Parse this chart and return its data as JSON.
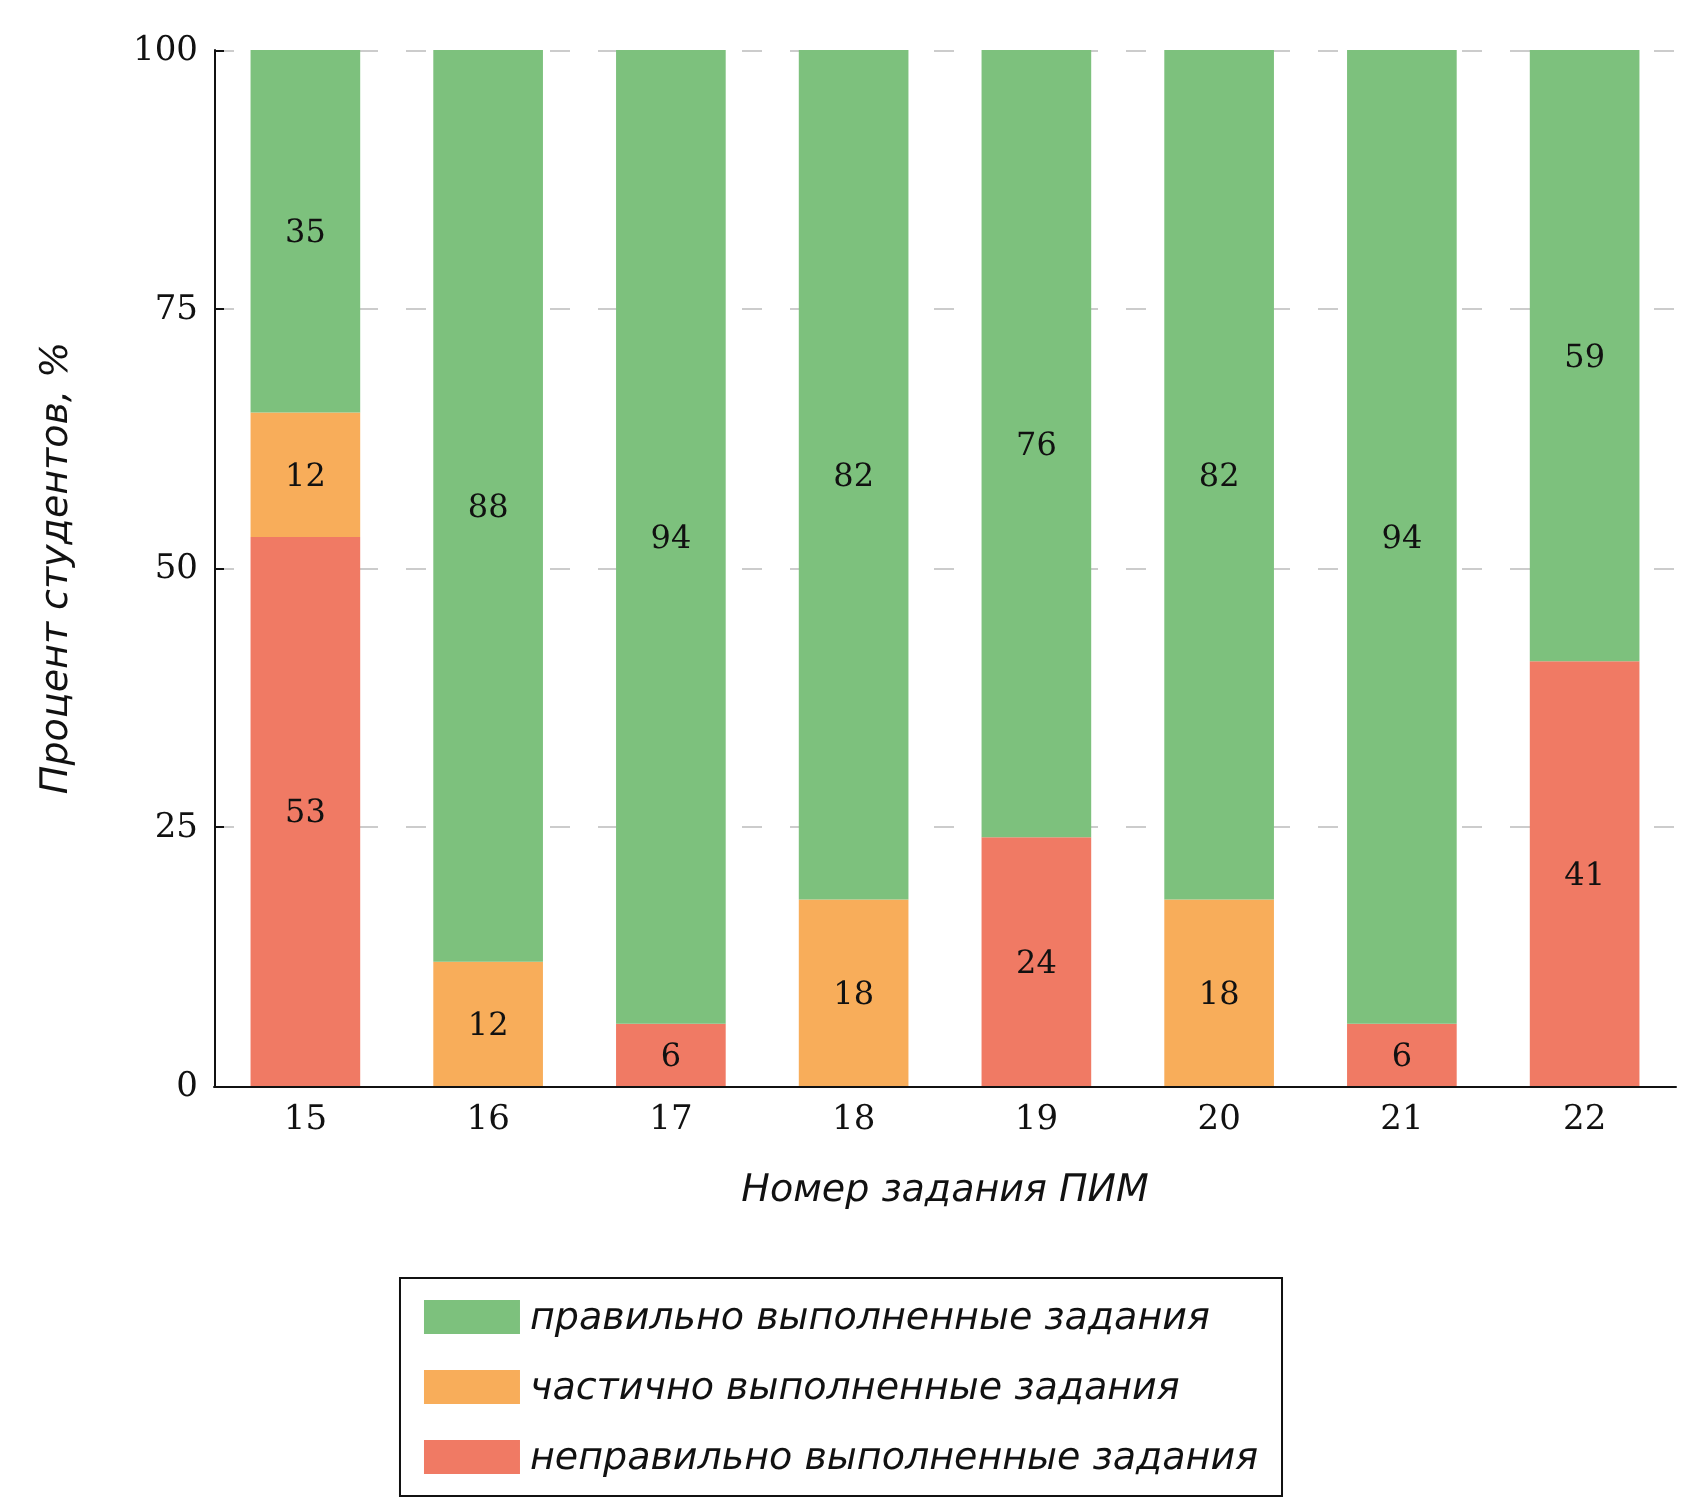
{
  "chart_data": {
    "type": "bar",
    "stacked": true,
    "xlabel": "Номер задания ПИМ",
    "ylabel": "Процент студентов, %",
    "categories": [
      "15",
      "16",
      "17",
      "18",
      "19",
      "20",
      "21",
      "22"
    ],
    "series": [
      {
        "name": "неправильно выполненные задания",
        "color": "#f07a64",
        "values": [
          53,
          null,
          6,
          null,
          24,
          null,
          6,
          41
        ]
      },
      {
        "name": "частично выполненные задания",
        "color": "#f8ad5a",
        "values": [
          12,
          12,
          null,
          18,
          null,
          18,
          null,
          null
        ]
      },
      {
        "name": "правильно выполненные задания",
        "color": "#7dc17d",
        "values": [
          35,
          88,
          94,
          82,
          76,
          82,
          94,
          59
        ]
      }
    ],
    "ylim": [
      0,
      100
    ],
    "yticks": [
      0,
      25,
      50,
      75,
      100
    ],
    "grid": "y",
    "legend": "bottom",
    "data_labels": true
  }
}
